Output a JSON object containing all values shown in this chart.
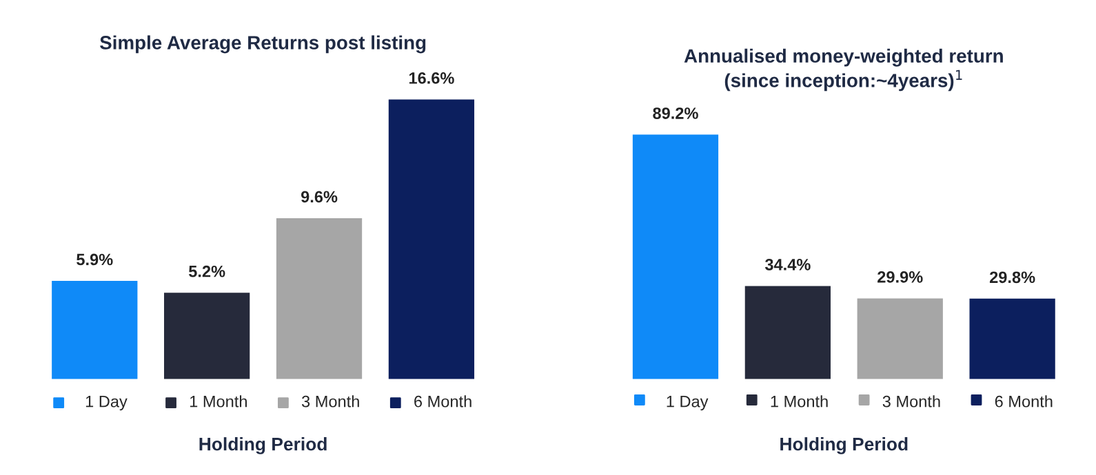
{
  "chart_data": [
    {
      "type": "bar",
      "title": "Simple Average Returns post listing",
      "xlabel": "Holding Period",
      "categories": [
        "1 Day",
        "1 Month",
        "3 Month",
        "6 Month"
      ],
      "values": [
        5.9,
        5.2,
        9.6,
        16.6
      ],
      "value_labels": [
        "5.9%",
        "5.2%",
        "9.6%",
        "16.6%"
      ],
      "colors": [
        "#0f8af8",
        "#262a3b",
        "#a6a6a6",
        "#0c1f5e"
      ],
      "tick_labels": "x",
      "grid": false
    },
    {
      "type": "bar",
      "title": "Annualised money-weighted return\n(since inception:~4years)$^{1}$",
      "xlabel": "Holding Period",
      "categories": [
        "1 Day",
        "1 Month",
        "3 Month",
        "6 Month"
      ],
      "values": [
        89.2,
        34.4,
        29.9,
        29.8
      ],
      "value_labels": [
        "89.2%",
        "34.4%",
        "29.9%",
        "29.8%"
      ],
      "colors": [
        "#0f8af8",
        "#262a3b",
        "#a6a6a6",
        "#0c1f5e"
      ],
      "tick_labels": "x",
      "grid": false
    }
  ]
}
